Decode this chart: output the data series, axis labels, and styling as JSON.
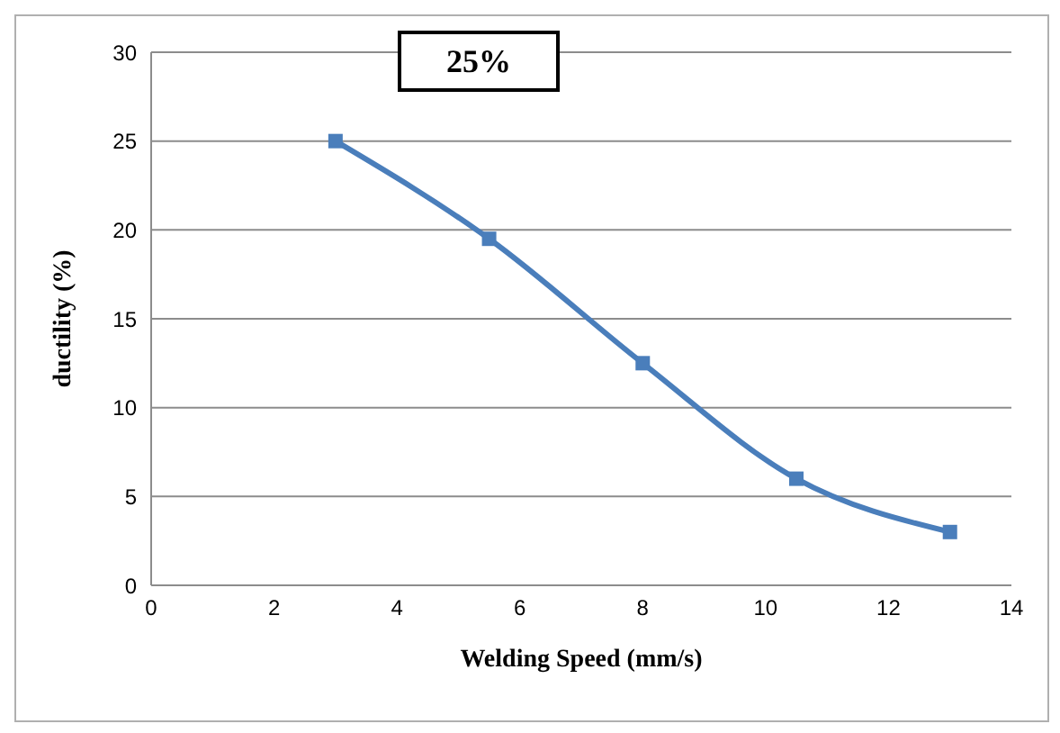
{
  "chart_data": {
    "type": "line",
    "xlabel": "Welding Speed (mm/s)",
    "ylabel": "ductility (%)",
    "annotations": [
      "25%"
    ],
    "x": [
      3,
      5.5,
      8,
      10.5,
      13
    ],
    "series": [
      {
        "color": "#4a7ebb",
        "values": [
          25,
          19.5,
          12.5,
          6,
          3
        ]
      }
    ],
    "xlim": [
      0,
      14
    ],
    "xticks": [
      0,
      2,
      4,
      6,
      8,
      10,
      12,
      14
    ],
    "ylim": [
      0,
      30
    ],
    "yticks": [
      0,
      5,
      10,
      15,
      20,
      25,
      30
    ],
    "grid": "y",
    "legend": false,
    "marker": "square",
    "line_style": "solid"
  }
}
